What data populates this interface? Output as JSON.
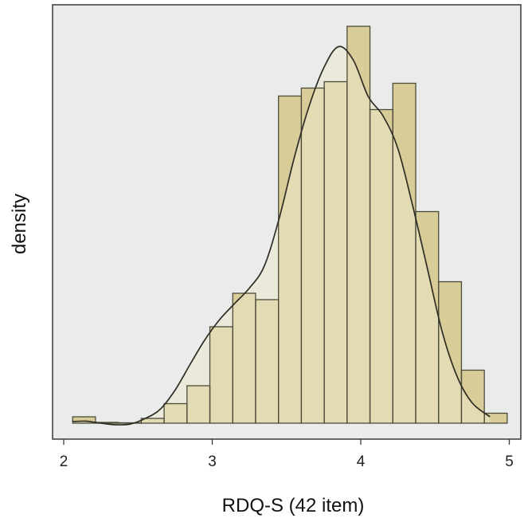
{
  "chart_data": {
    "type": "histogram",
    "title": "",
    "xlabel": "RDQ-S (42 item)",
    "ylabel": "density",
    "xlim": [
      1.94,
      5.01
    ],
    "ylim": [
      0,
      1.0
    ],
    "x_ticks": [
      2,
      3,
      4,
      5
    ],
    "x_tick_labels": [
      "2",
      "3",
      "4",
      "5"
    ],
    "y_ticks_shown": false,
    "grid": false,
    "bin_width": 0.154,
    "bin_left_edges": [
      2.06,
      2.214,
      2.368,
      2.522,
      2.676,
      2.83,
      2.984,
      3.138,
      3.292,
      3.446,
      3.6,
      3.754,
      3.908,
      4.062,
      4.216,
      4.37,
      4.524,
      4.678,
      4.832
    ],
    "bin_values": [
      0.016,
      0.002,
      0.0,
      0.012,
      0.049,
      0.094,
      0.242,
      0.326,
      0.31,
      0.821,
      0.841,
      0.857,
      0.996,
      0.787,
      0.853,
      0.531,
      0.355,
      0.133,
      0.025
    ],
    "density_curve": {
      "x": [
        2.06,
        2.15,
        2.25,
        2.35,
        2.45,
        2.55,
        2.65,
        2.75,
        2.85,
        2.95,
        3.05,
        3.15,
        3.25,
        3.35,
        3.45,
        3.55,
        3.65,
        3.75,
        3.85,
        3.95,
        4.05,
        4.15,
        4.25,
        4.35,
        4.45,
        4.55,
        4.65,
        4.75,
        4.87
      ],
      "y": [
        0.004,
        0.005,
        0.0,
        -0.004,
        -0.002,
        0.012,
        0.035,
        0.083,
        0.147,
        0.209,
        0.26,
        0.3,
        0.339,
        0.394,
        0.513,
        0.663,
        0.793,
        0.891,
        0.945,
        0.911,
        0.82,
        0.771,
        0.689,
        0.545,
        0.386,
        0.227,
        0.116,
        0.051,
        0.016
      ]
    },
    "colors": {
      "panel_background": "#eaeceb",
      "bar_fill": "#d8cc98",
      "bar_stroke": "#4d4b3a",
      "curve_fill": "#ebe8cc",
      "curve_stroke": "#2f2e26",
      "axis": "#3a3a3a"
    }
  }
}
